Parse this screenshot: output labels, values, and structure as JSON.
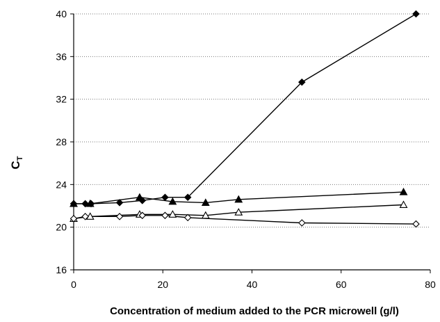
{
  "chart_data": {
    "type": "line",
    "title": "",
    "xlabel": "Concentration of medium added to the PCR microwell (g/l)",
    "ylabel_main": "C",
    "ylabel_sub": "T",
    "xlim": [
      0,
      80
    ],
    "ylim": [
      16,
      40
    ],
    "x_ticks": [
      0,
      20,
      40,
      60,
      80
    ],
    "y_ticks": [
      16,
      20,
      24,
      28,
      32,
      36,
      40
    ],
    "grid": "horizontal-dotted",
    "legend": "none",
    "series": [
      {
        "marker": "diamond-filled",
        "color": "#000000",
        "x": [
          0,
          2.6,
          3.9,
          10.3,
          15.4,
          20.5,
          25.6,
          51.2,
          76.8
        ],
        "y": [
          22.2,
          22.2,
          22.2,
          22.3,
          22.5,
          22.8,
          22.8,
          33.6,
          40.0
        ]
      },
      {
        "marker": "triangle-filled",
        "color": "#000000",
        "x": [
          0,
          3.7,
          14.8,
          22.2,
          29.6,
          37.0,
          74.0
        ],
        "y": [
          22.2,
          22.2,
          22.8,
          22.4,
          22.3,
          22.6,
          23.3
        ]
      },
      {
        "marker": "triangle-open",
        "color": "#000000",
        "x": [
          0,
          3.7,
          14.8,
          22.2,
          29.6,
          37.0,
          74.0
        ],
        "y": [
          20.8,
          21.0,
          21.2,
          21.2,
          21.1,
          21.4,
          22.1
        ]
      },
      {
        "marker": "diamond-open",
        "color": "#000000",
        "x": [
          0,
          2.6,
          10.3,
          15.4,
          20.5,
          25.6,
          51.2,
          76.8
        ],
        "y": [
          20.8,
          21.0,
          21.0,
          21.1,
          21.1,
          20.9,
          20.4,
          20.3
        ]
      }
    ]
  }
}
